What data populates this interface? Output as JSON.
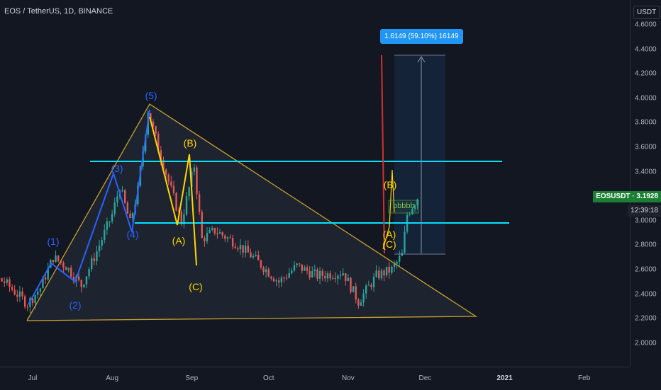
{
  "header": {
    "symbol_title": "EOS / TetherUS, 1D, BINANCE"
  },
  "price_axis": {
    "currency": "USDT",
    "ticks": [
      "4.6000",
      "4.4000",
      "4.2000",
      "4.0000",
      "3.8000",
      "3.6000",
      "3.4000",
      "3.2000",
      "3.0000",
      "2.8000",
      "2.6000",
      "2.4000",
      "2.2000",
      "2.0000"
    ],
    "current_price_label": "EOSUSDT · 3.1928",
    "countdown": "12:39:18"
  },
  "time_axis": {
    "ticks": [
      "Jul",
      "Aug",
      "Sep",
      "Oct",
      "Nov",
      "Dec",
      "2021",
      "Feb"
    ]
  },
  "colors": {
    "up": "#26a69a",
    "down": "#ef5350",
    "triangle": "#c8a032",
    "levels": "#00e5ff",
    "price_tag": "#1b7f33",
    "measure": "#2196f3"
  },
  "measure": {
    "label": "1.6149 (59.10%) 16149"
  },
  "annotations": {
    "wave_5": "(5)",
    "wave_1": "(1)",
    "wave_2": "(2)",
    "wave_3": "(3)",
    "wave_4": "(4)",
    "corr_b": "(B)",
    "corr_a": "(A)",
    "corr_c": "(C)",
    "recent_b": "(B)",
    "recent_a": "(A)",
    "recent_c": "(C)",
    "note": "bbbbb"
  },
  "chart_data": {
    "type": "candlestick",
    "symbol": "EOS / TetherUS",
    "timeframe": "1D",
    "exchange": "BINANCE",
    "ylim": [
      1.85,
      4.75
    ],
    "y_ticks": [
      2.0,
      2.2,
      2.4,
      2.6,
      2.8,
      3.0,
      3.2,
      3.4,
      3.6,
      3.8,
      4.0,
      4.2,
      4.4,
      4.6
    ],
    "x_tick_labels": [
      "Jul",
      "Aug",
      "Sep",
      "Oct",
      "Nov",
      "Dec",
      "2021",
      "Feb"
    ],
    "last_price": 3.1928,
    "horizontal_levels": [
      3.49,
      2.99
    ],
    "triangle": [
      [
        "2020-06-29",
        2.2
      ],
      [
        "2020-08-15",
        3.93
      ],
      [
        "2020-12-28",
        2.23
      ]
    ],
    "measure_range": [
      2.73,
      4.35
    ],
    "price_path": [
      [
        "2020-06-01",
        2.62
      ],
      [
        "2020-06-10",
        2.58
      ],
      [
        "2020-06-20",
        2.5
      ],
      [
        "2020-06-29",
        2.32
      ],
      [
        "2020-07-04",
        2.45
      ],
      [
        "2020-07-09",
        2.7
      ],
      [
        "2020-07-14",
        2.63
      ],
      [
        "2020-07-20",
        2.47
      ],
      [
        "2020-07-26",
        2.75
      ],
      [
        "2020-08-01",
        3.05
      ],
      [
        "2020-08-04",
        3.28
      ],
      [
        "2020-08-08",
        2.98
      ],
      [
        "2020-08-11",
        3.25
      ],
      [
        "2020-08-15",
        3.9
      ],
      [
        "2020-08-19",
        3.6
      ],
      [
        "2020-08-24",
        3.25
      ],
      [
        "2020-08-28",
        2.99
      ],
      [
        "2020-09-02",
        3.45
      ],
      [
        "2020-09-05",
        2.85
      ],
      [
        "2020-09-10",
        2.92
      ],
      [
        "2020-09-18",
        2.82
      ],
      [
        "2020-09-25",
        2.7
      ],
      [
        "2020-10-05",
        2.5
      ],
      [
        "2020-10-12",
        2.63
      ],
      [
        "2020-10-20",
        2.55
      ],
      [
        "2020-10-30",
        2.58
      ],
      [
        "2020-11-05",
        2.34
      ],
      [
        "2020-11-12",
        2.55
      ],
      [
        "2020-11-18",
        2.6
      ],
      [
        "2020-11-22",
        2.72
      ],
      [
        "2020-11-24",
        3.05
      ],
      [
        "2020-11-28",
        3.19
      ]
    ]
  }
}
